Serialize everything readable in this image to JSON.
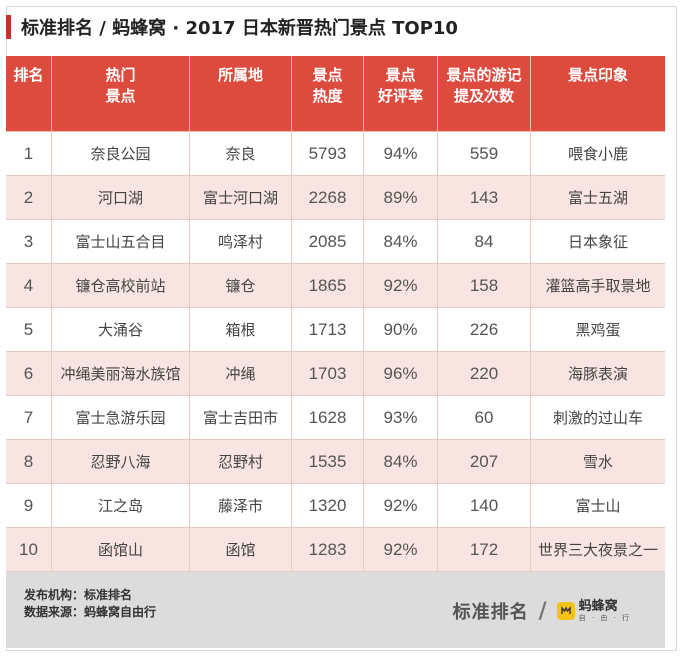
{
  "title": "标准排名 / 蚂蜂窝 · 2017 日本新晋热门景点 TOP10",
  "headers": [
    [
      "排名"
    ],
    [
      "热门",
      "景点"
    ],
    [
      "所属地"
    ],
    [
      "景点",
      "热度"
    ],
    [
      "景点",
      "好评率"
    ],
    [
      "景点的游记",
      "提及次数"
    ],
    [
      "景点印象"
    ]
  ],
  "rows": [
    [
      "1",
      "奈良公园",
      "奈良",
      "5793",
      "94%",
      "559",
      "喂食小鹿"
    ],
    [
      "2",
      "河口湖",
      "富士河口湖",
      "2268",
      "89%",
      "143",
      "富士五湖"
    ],
    [
      "3",
      "富士山五合目",
      "鸣泽村",
      "2085",
      "84%",
      "84",
      "日本象征"
    ],
    [
      "4",
      "镰仓高校前站",
      "镰仓",
      "1865",
      "92%",
      "158",
      "灌篮高手取景地"
    ],
    [
      "5",
      "大涌谷",
      "箱根",
      "1713",
      "90%",
      "226",
      "黑鸡蛋"
    ],
    [
      "6",
      "冲绳美丽海水族馆",
      "冲绳",
      "1703",
      "96%",
      "220",
      "海豚表演"
    ],
    [
      "7",
      "富士急游乐园",
      "富士吉田市",
      "1628",
      "93%",
      "60",
      "刺激的过山车"
    ],
    [
      "8",
      "忍野八海",
      "忍野村",
      "1535",
      "84%",
      "207",
      "雪水"
    ],
    [
      "9",
      "江之岛",
      "藤泽市",
      "1320",
      "92%",
      "140",
      "富士山"
    ],
    [
      "10",
      "函馆山",
      "函馆",
      "1283",
      "92%",
      "172",
      "世界三大夜景之一"
    ]
  ],
  "footer": {
    "publisher": "发布机构：标准排名",
    "source": "数据来源：蚂蜂窝自由行",
    "brand_a": "标准排名",
    "slash": "/",
    "brand_b": "蚂蜂窝",
    "brand_b_sub": "自 · 由 · 行",
    "logo_mark": "ꟽ"
  },
  "colors": {
    "header_bg": "#dd4b3f",
    "title_accent": "#c9302c",
    "row_even_bg": "#f8e4e0",
    "footer_bg": "#dcdcdc",
    "logo_yellow": "#f3c315"
  }
}
